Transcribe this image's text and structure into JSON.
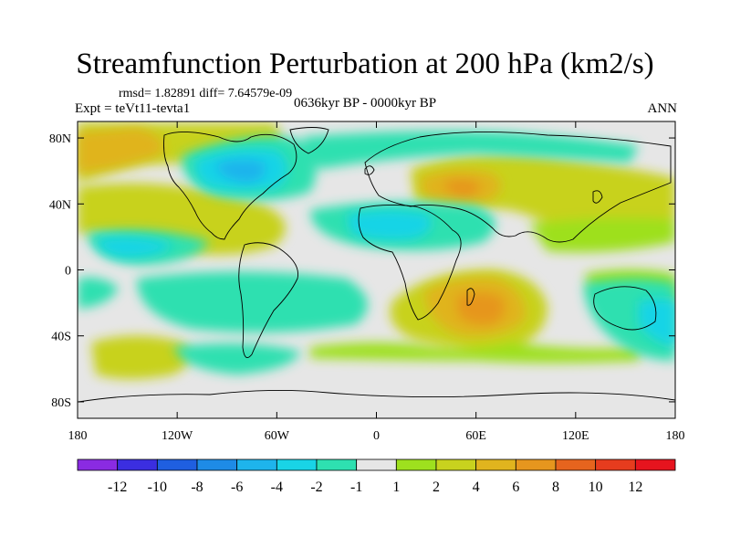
{
  "title": "Streamfunction Perturbation at 200 hPa (km2/s)",
  "stats": "rmsd= 1.82891 diff= 7.64579e-09",
  "expt": "Expt = teVt11-tevta1",
  "period": "0636kyr BP - 0000kyr BP",
  "season": "ANN",
  "map": {
    "x_ticks": [
      "180",
      "120W",
      "60W",
      "0",
      "60E",
      "120E",
      "180"
    ],
    "y_ticks": [
      "80N",
      "40N",
      "0",
      "40S",
      "80S"
    ],
    "background_color": "#e6e6e6"
  },
  "colorbar": {
    "labels": [
      "-12",
      "-10",
      "-8",
      "-6",
      "-4",
      "-2",
      "-1",
      "1",
      "2",
      "4",
      "6",
      "8",
      "10",
      "12"
    ],
    "colors": [
      "#8a2be2",
      "#3b2ee0",
      "#1f5fe0",
      "#1e8be6",
      "#1eb4ec",
      "#19d4e6",
      "#2ee0b0",
      "#e6e6e6",
      "#9ee01e",
      "#c8d21e",
      "#e0b41e",
      "#e6961e",
      "#e6641e",
      "#e63c1e",
      "#e6141e"
    ]
  }
}
